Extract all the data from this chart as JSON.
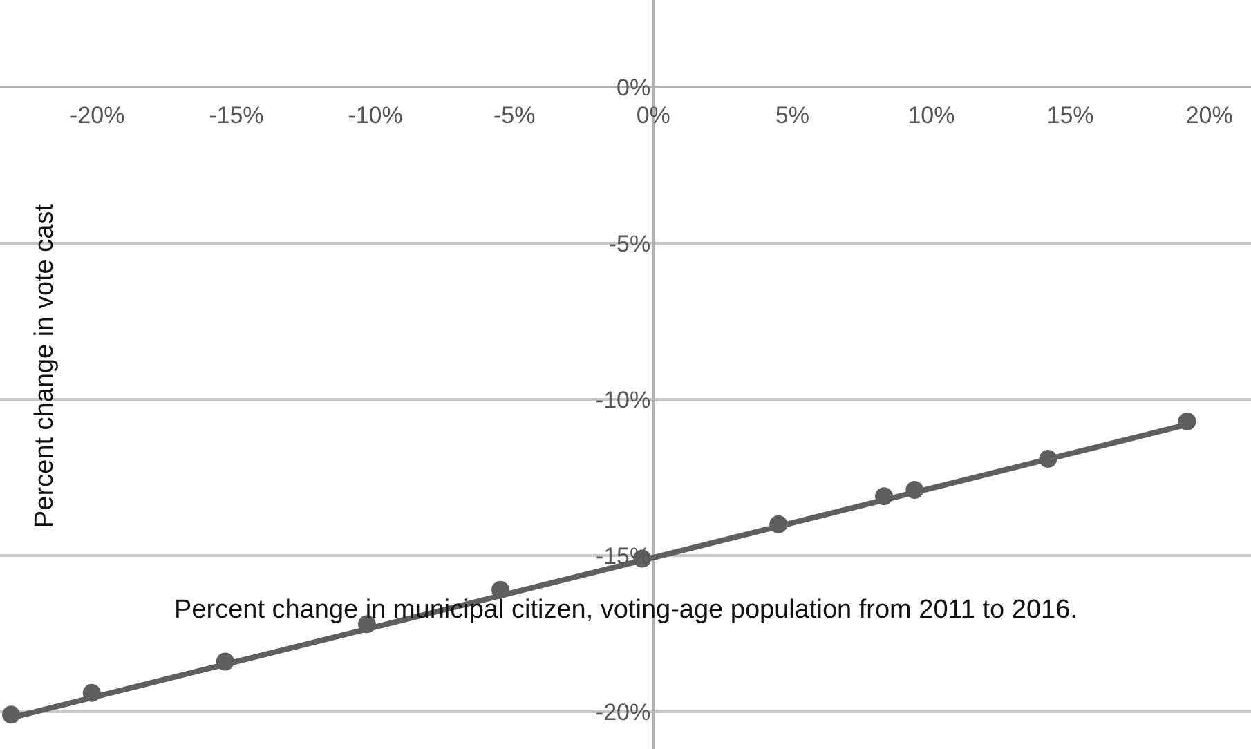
{
  "chart_data": {
    "type": "scatter",
    "xlabel": "Percent change in municipal citizen, voting-age population from 2011 to 2016.",
    "ylabel": "Percent change in vote cast",
    "series": [
      {
        "color": "#5f5f5f",
        "marker": "circle",
        "x": [
          -23.1,
          -20.2,
          -15.4,
          -10.3,
          -5.5,
          -0.4,
          4.5,
          8.3,
          9.4,
          14.2,
          19.2
        ],
        "values": [
          -20.1,
          -19.4,
          -18.4,
          -17.2,
          -16.1,
          -15.1,
          -14.0,
          -13.1,
          -12.9,
          -11.9,
          -10.7
        ]
      },
      {
        "type": "line",
        "color": "#5f5f5f",
        "marker": "none",
        "x": [
          -23.1,
          19.2
        ],
        "values": [
          -20.2,
          -10.8
        ]
      }
    ],
    "xlim": [
      -23.5,
      21.5
    ],
    "ylim": [
      -21.2,
      2.8
    ],
    "xticks": [
      {
        "value": -20,
        "label": "-20%"
      },
      {
        "value": -15,
        "label": "-15%"
      },
      {
        "value": -10,
        "label": "-10%"
      },
      {
        "value": -5,
        "label": "-5%"
      },
      {
        "value": 0,
        "label": "0%"
      },
      {
        "value": 5,
        "label": "5%"
      },
      {
        "value": 10,
        "label": "10%"
      },
      {
        "value": 15,
        "label": "15%"
      },
      {
        "value": 20,
        "label": "20%"
      }
    ],
    "yticks": [
      {
        "value": 0,
        "label": "0%"
      },
      {
        "value": -5,
        "label": "-5%"
      },
      {
        "value": -10,
        "label": "-10%"
      },
      {
        "value": -15,
        "label": "-15%"
      },
      {
        "value": -20,
        "label": "-20%"
      }
    ],
    "grid": "y"
  }
}
